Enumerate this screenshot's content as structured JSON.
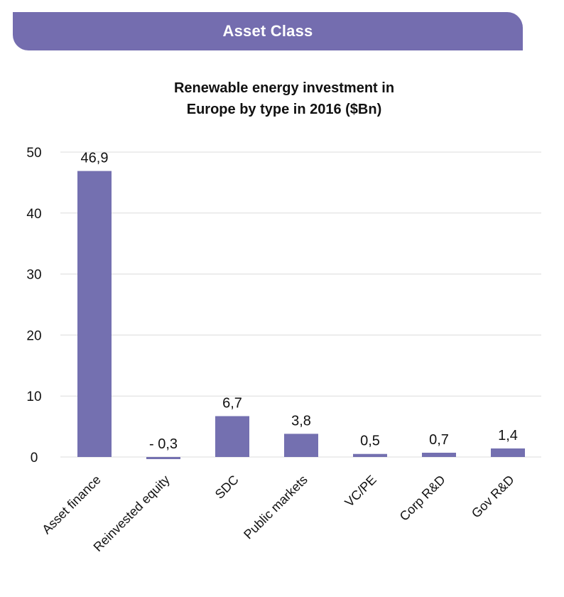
{
  "header": {
    "title": "Asset Class"
  },
  "colors": {
    "accent": "#746daf",
    "bar": "#7470b0",
    "grid": "#dcdcdc"
  },
  "chart_data": {
    "type": "bar",
    "title": [
      "Renewable energy investment in",
      "Europe by type in 2016 ($Bn)"
    ],
    "categories": [
      "Asset finance",
      "Reinvested equity",
      "SDC",
      "Public markets",
      "VC/PE",
      "Corp R&D",
      "Gov R&D"
    ],
    "values": [
      46.9,
      -0.3,
      6.7,
      3.8,
      0.5,
      0.7,
      1.4
    ],
    "value_labels": [
      "46,9",
      "- 0,3",
      "6,7",
      "3,8",
      "0,5",
      "0,7",
      "1,4"
    ],
    "yticks": [
      0,
      10,
      20,
      30,
      40,
      50
    ],
    "ylim": [
      0,
      50
    ],
    "grid": true,
    "legend": "none"
  }
}
